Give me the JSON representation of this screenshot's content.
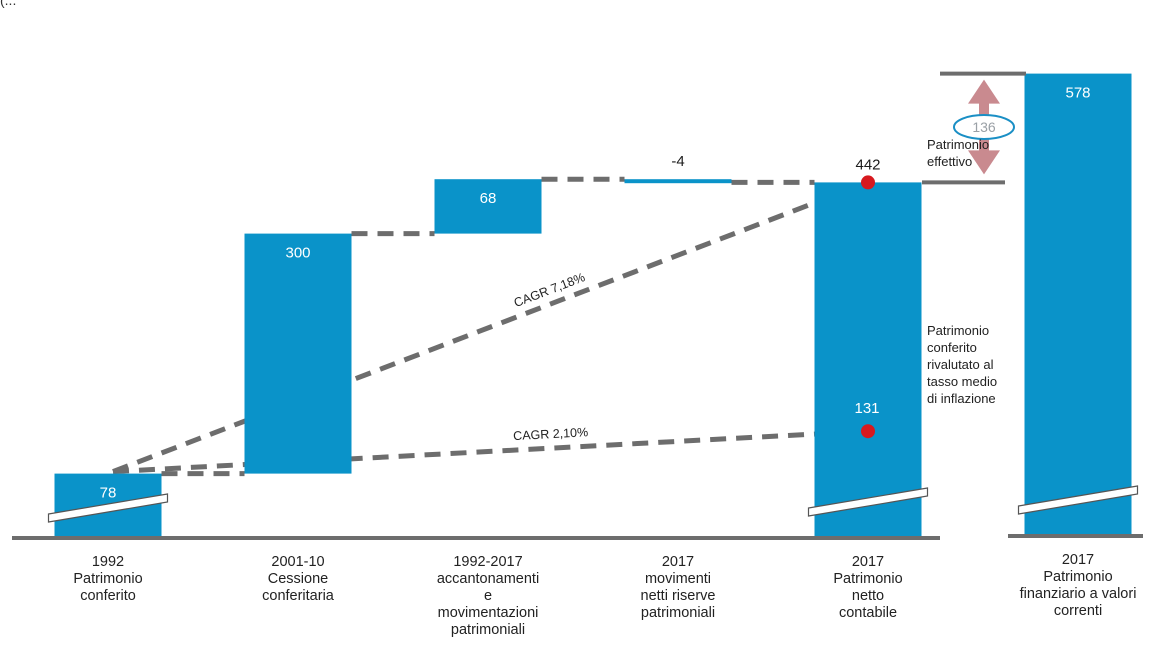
{
  "colors": {
    "bar": "#0a93c9",
    "connector": "#6d6d6d",
    "baseline": "#6d6d6d",
    "marker": "#d7191f",
    "arrow": "#c98a8f",
    "badge_border": "#1a8fc5"
  },
  "top_fragment": "(...",
  "chart_data": {
    "type": "bar",
    "subtype": "waterfall",
    "ylim": [
      0,
      600
    ],
    "bars": [
      {
        "key": "b1992",
        "value_label": "78",
        "start": 0,
        "end": 78,
        "label_inside": true,
        "axis_break": true
      },
      {
        "key": "b2001",
        "value_label": "300",
        "start": 78,
        "end": 378,
        "label_inside": true,
        "axis_break": false
      },
      {
        "key": "b1992_2017",
        "value_label": "68",
        "start": 378,
        "end": 446,
        "label_inside": true,
        "axis_break": false
      },
      {
        "key": "b2017mov",
        "value_label": "-4",
        "start": 446,
        "end": 442,
        "label_inside": false,
        "axis_break": false
      },
      {
        "key": "b2017pn",
        "value_label": "442",
        "start": 0,
        "end": 442,
        "label_inside": false,
        "axis_break": true
      },
      {
        "key": "b2017pf",
        "value_label": "578",
        "start": 0,
        "end": 578,
        "label_inside": true,
        "axis_break": true
      }
    ],
    "categories": [
      {
        "key": "c1",
        "lines": [
          "1992",
          "Patrimonio",
          "conferito"
        ]
      },
      {
        "key": "c2",
        "lines": [
          "2001-10",
          "Cessione",
          "conferitaria"
        ]
      },
      {
        "key": "c3",
        "lines": [
          "1992-2017",
          "accantonamenti",
          "e",
          "movimentazioni",
          "patrimoniali"
        ]
      },
      {
        "key": "c4",
        "lines": [
          "2017",
          "movimenti",
          "netti riserve",
          "patrimoniali"
        ]
      },
      {
        "key": "c5",
        "lines": [
          "2017",
          "Patrimonio",
          "netto",
          "contabile"
        ]
      },
      {
        "key": "c6",
        "lines": [
          "2017",
          "Patrimonio",
          "finanziario a valori",
          "correnti"
        ]
      }
    ],
    "markers": [
      {
        "key": "m442",
        "value": 442,
        "label": ""
      },
      {
        "key": "m131",
        "value": 131,
        "label": "131"
      }
    ],
    "cagr_lines": [
      {
        "key": "cagr1",
        "label": "CAGR 7,18%",
        "from": 78,
        "to": 442
      },
      {
        "key": "cagr2",
        "label": "CAGR 2,10%",
        "from": 78,
        "to": 131
      }
    ],
    "difference": {
      "label": "136",
      "from": 442,
      "to": 578
    },
    "notes": {
      "effettivo": [
        "Patrimonio",
        "effettivo"
      ],
      "rivalutato": [
        "Patrimonio",
        "conferito",
        "rivalutato al",
        "tasso medio",
        "di inflazione"
      ]
    }
  }
}
